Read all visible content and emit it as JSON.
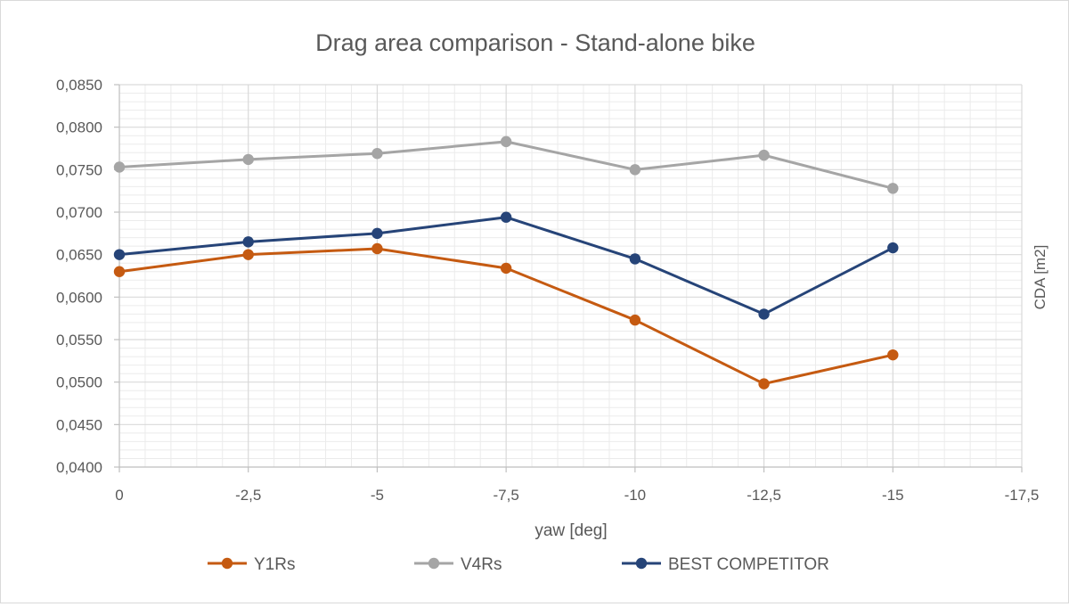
{
  "chart_data": {
    "type": "line",
    "title": "Drag area comparison - Stand-alone bike",
    "xlabel": "yaw [deg]",
    "ylabel": "CDA [m2]",
    "x_axis": {
      "min": 0,
      "max": -17.5,
      "ticks": [
        0,
        -2.5,
        -5,
        -7.5,
        -10,
        -12.5,
        -15,
        -17.5
      ],
      "tick_labels": [
        "0",
        "-2,5",
        "-5",
        "-7,5",
        "-10",
        "-12,5",
        "-15",
        "-17,5"
      ]
    },
    "y_axis": {
      "min": 0.04,
      "max": 0.085,
      "ticks": [
        0.04,
        0.045,
        0.05,
        0.055,
        0.06,
        0.065,
        0.07,
        0.075,
        0.08,
        0.085
      ],
      "tick_labels": [
        "0,0400",
        "0,0450",
        "0,0500",
        "0,0550",
        "0,0600",
        "0,0650",
        "0,0700",
        "0,0750",
        "0,0800",
        "0,0850"
      ],
      "position": "right"
    },
    "grid": {
      "major": true,
      "minor": true
    },
    "legend_position": "bottom",
    "x": [
      0,
      -2.5,
      -5,
      -7.5,
      -10,
      -12.5,
      -15
    ],
    "series": [
      {
        "name": "Y1Rs",
        "color": "#c55a11",
        "values": [
          0.063,
          0.065,
          0.0657,
          0.0634,
          0.0573,
          0.0498,
          0.0532
        ]
      },
      {
        "name": "V4Rs",
        "color": "#a5a5a5",
        "values": [
          0.0753,
          0.0762,
          0.0769,
          0.0783,
          0.075,
          0.0767,
          0.0728
        ]
      },
      {
        "name": "BEST COMPETITOR",
        "color": "#264478",
        "values": [
          0.065,
          0.0665,
          0.0675,
          0.0694,
          0.0645,
          0.058,
          0.0658
        ]
      }
    ]
  }
}
